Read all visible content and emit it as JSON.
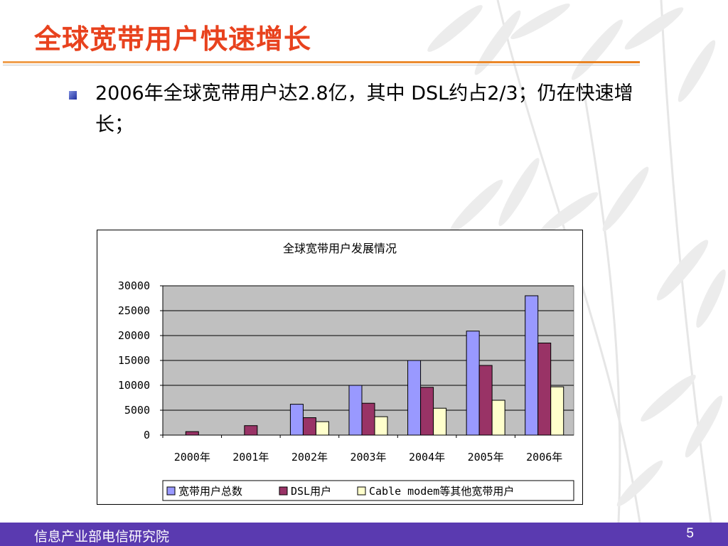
{
  "slide": {
    "title": "全球宽带用户快速增长",
    "bullet": "2006年全球宽带用户达2.8亿，其中 DSL约占2/3；仍在快速增长；"
  },
  "footer": {
    "org": "信息产业部电信研究院",
    "page": "5"
  },
  "colors": {
    "title": "#e8421e",
    "footer_bg": "#5a3ab0",
    "plot_bg": "#c0c0c0",
    "series": [
      "#9999ff",
      "#993366",
      "#ffffcc"
    ]
  },
  "chart_data": {
    "type": "bar",
    "title": "全球宽带用户发展情况",
    "categories": [
      "2000年",
      "2001年",
      "2002年",
      "2003年",
      "2004年",
      "2005年",
      "2006年"
    ],
    "series": [
      {
        "name": "宽带用户总数",
        "values": [
          0,
          0,
          6200,
          10000,
          15000,
          20900,
          28000
        ]
      },
      {
        "name": "DSL用户",
        "values": [
          700,
          1900,
          3500,
          6400,
          9600,
          14000,
          18500
        ]
      },
      {
        "name": "Cable modem等其他宽带用户",
        "values": [
          0,
          0,
          2700,
          3700,
          5400,
          7000,
          9700
        ]
      }
    ],
    "yticks": [
      "30000",
      "25000",
      "20000",
      "15000",
      "10000",
      "5000",
      "0"
    ],
    "ylim": [
      0,
      30000
    ],
    "grid": true,
    "legend": "bottom"
  }
}
